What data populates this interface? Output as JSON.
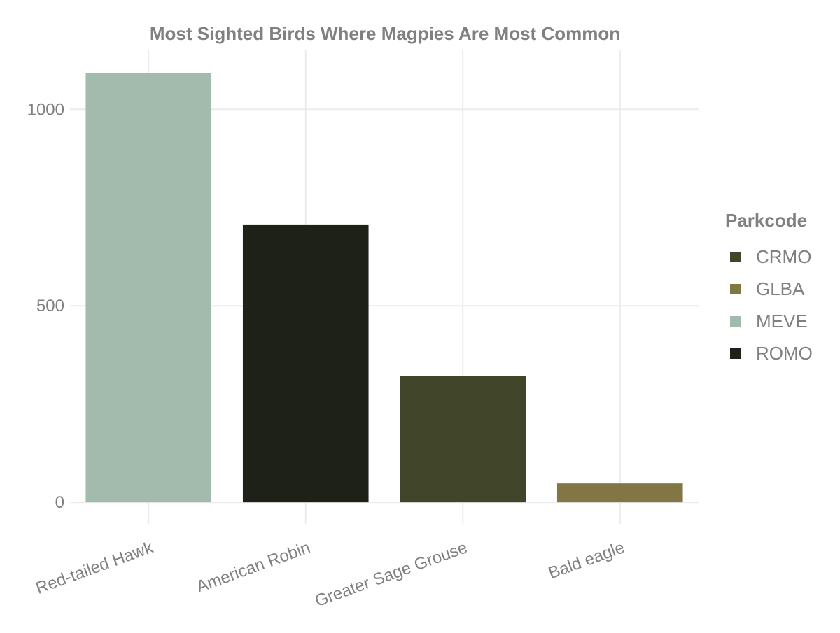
{
  "chart_data": {
    "type": "bar",
    "title": "Most Sighted Birds Where Magpies Are Most Common",
    "xlabel": "",
    "ylabel": "",
    "categories": [
      "Red-tailed Hawk",
      "American Robin",
      "Greater Sage Grouse",
      "Bald eagle"
    ],
    "values": [
      1092,
      707,
      321,
      48
    ],
    "bar_park": [
      "MEVE",
      "ROMO",
      "CRMO",
      "GLBA"
    ],
    "y_ticks": [
      "0",
      "500",
      "1000"
    ],
    "ylim": [
      -30,
      1150
    ],
    "grid": true,
    "legend": {
      "title": "Parkcode",
      "position": "right",
      "entries": [
        {
          "label": "CRMO",
          "color": "#41452a"
        },
        {
          "label": "GLBA",
          "color": "#837645"
        },
        {
          "label": "MEVE",
          "color": "#a2bbad"
        },
        {
          "label": "ROMO",
          "color": "#1d2118"
        }
      ]
    }
  }
}
